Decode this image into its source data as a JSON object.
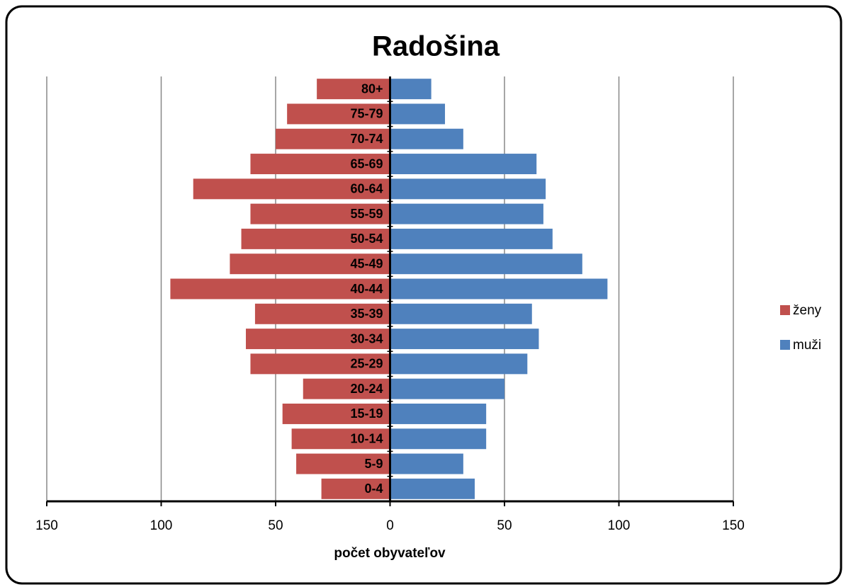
{
  "chart_data": {
    "type": "bar",
    "orientation": "horizontal",
    "title": "Radošina",
    "xlabel": "počet obyvateľov",
    "categories": [
      "0-4",
      "5-9",
      "10-14",
      "15-19",
      "20-24",
      "25-29",
      "30-34",
      "35-39",
      "40-44",
      "45-49",
      "50-54",
      "55-59",
      "60-64",
      "65-69",
      "70-74",
      "75-79",
      "80+"
    ],
    "series": [
      {
        "name": "ženy",
        "color": "#c0504d",
        "values": [
          -30,
          -41,
          -43,
          -47,
          -38,
          -61,
          -63,
          -59,
          -96,
          -70,
          -65,
          -61,
          -86,
          -61,
          -50,
          -45,
          -32
        ]
      },
      {
        "name": "muži",
        "color": "#4f81bd",
        "values": [
          37,
          32,
          42,
          42,
          50,
          60,
          65,
          62,
          95,
          84,
          71,
          67,
          68,
          64,
          32,
          24,
          18
        ]
      }
    ],
    "xlim": [
      -150,
      150
    ],
    "xticks": [
      {
        "value": -150,
        "label": "150"
      },
      {
        "value": -100,
        "label": "100"
      },
      {
        "value": -50,
        "label": "50"
      },
      0,
      50,
      100,
      150
    ],
    "grid": true,
    "legend": "right"
  }
}
